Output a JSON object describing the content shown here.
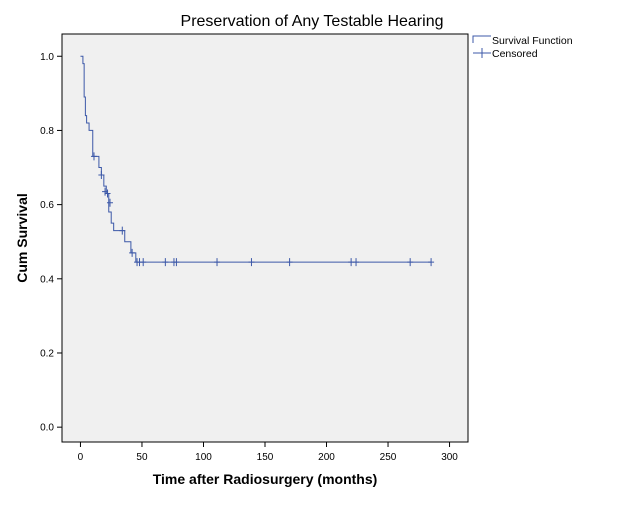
{
  "chart_data": {
    "type": "line",
    "title": "Preservation of Any Testable Hearing",
    "xlabel": "Time after Radiosurgery (months)",
    "ylabel": "Cum Survival",
    "xlim": [
      -15,
      315
    ],
    "ylim": [
      -0.04,
      1.06
    ],
    "xticks": [
      "0",
      "50",
      "100",
      "150",
      "200",
      "250",
      "300"
    ],
    "yticks": [
      "0.0",
      "0.2",
      "0.4",
      "0.6",
      "0.8",
      "1.0"
    ],
    "grid": false,
    "legend_position": "top-right (outside plot)",
    "series": [
      {
        "name": "Survival Function",
        "style": "step",
        "x": [
          0,
          2,
          3,
          4,
          5,
          7,
          10,
          13,
          15,
          17,
          19,
          21,
          23,
          25,
          27,
          33,
          36,
          41,
          45,
          52,
          68,
          76,
          78,
          110,
          138,
          169,
          220,
          224,
          268,
          285
        ],
        "y": [
          1.0,
          0.98,
          0.89,
          0.84,
          0.82,
          0.8,
          0.73,
          0.73,
          0.7,
          0.68,
          0.65,
          0.63,
          0.58,
          0.55,
          0.53,
          0.53,
          0.5,
          0.47,
          0.445,
          0.445,
          0.445,
          0.445,
          0.445,
          0.445,
          0.445,
          0.445,
          0.445,
          0.445,
          0.445,
          0.445
        ]
      },
      {
        "name": "Censored",
        "style": "markers",
        "x": [
          11,
          17,
          20,
          22,
          24,
          34,
          42,
          46,
          48,
          51,
          69,
          76,
          78,
          111,
          139,
          170,
          220,
          224,
          268,
          285
        ],
        "y": [
          0.73,
          0.68,
          0.635,
          0.63,
          0.605,
          0.53,
          0.47,
          0.445,
          0.445,
          0.445,
          0.445,
          0.445,
          0.445,
          0.445,
          0.445,
          0.445,
          0.445,
          0.445,
          0.445,
          0.445
        ]
      }
    ],
    "colors": {
      "line": "#3c58a8",
      "plot_background": "#f0f0f0",
      "frame": "#000000"
    }
  }
}
